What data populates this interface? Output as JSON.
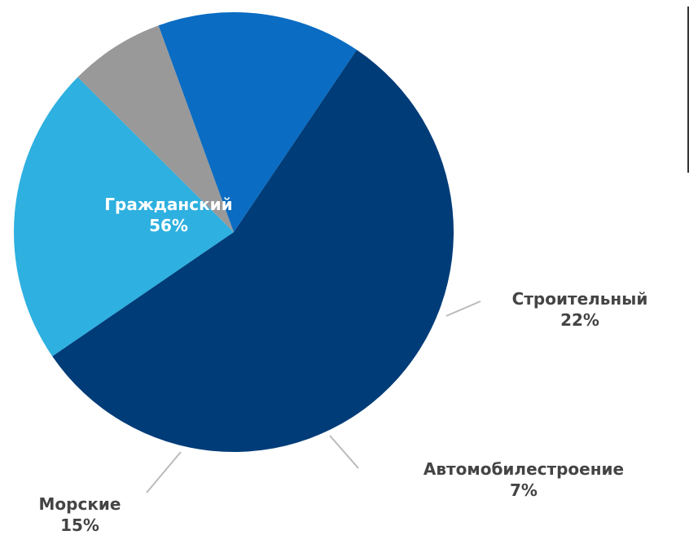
{
  "chart_data": {
    "type": "pie",
    "slices": [
      {
        "label": "Гражданский",
        "percent": "56%",
        "value": 56,
        "color": "#003c78"
      },
      {
        "label": "Строительный",
        "percent": "22%",
        "value": 22,
        "color": "#2eb0e0"
      },
      {
        "label": "Автомобилестроение",
        "percent": "7%",
        "value": 7,
        "color": "#999999"
      },
      {
        "label": "Морские",
        "percent": "15%",
        "value": 15,
        "color": "#0a6cc2"
      }
    ],
    "start_angle_deg": 304,
    "colors": {
      "label_on_dark": "#ffffff",
      "label_outside": "#444444",
      "leader_line": "#bbbbbb"
    }
  }
}
